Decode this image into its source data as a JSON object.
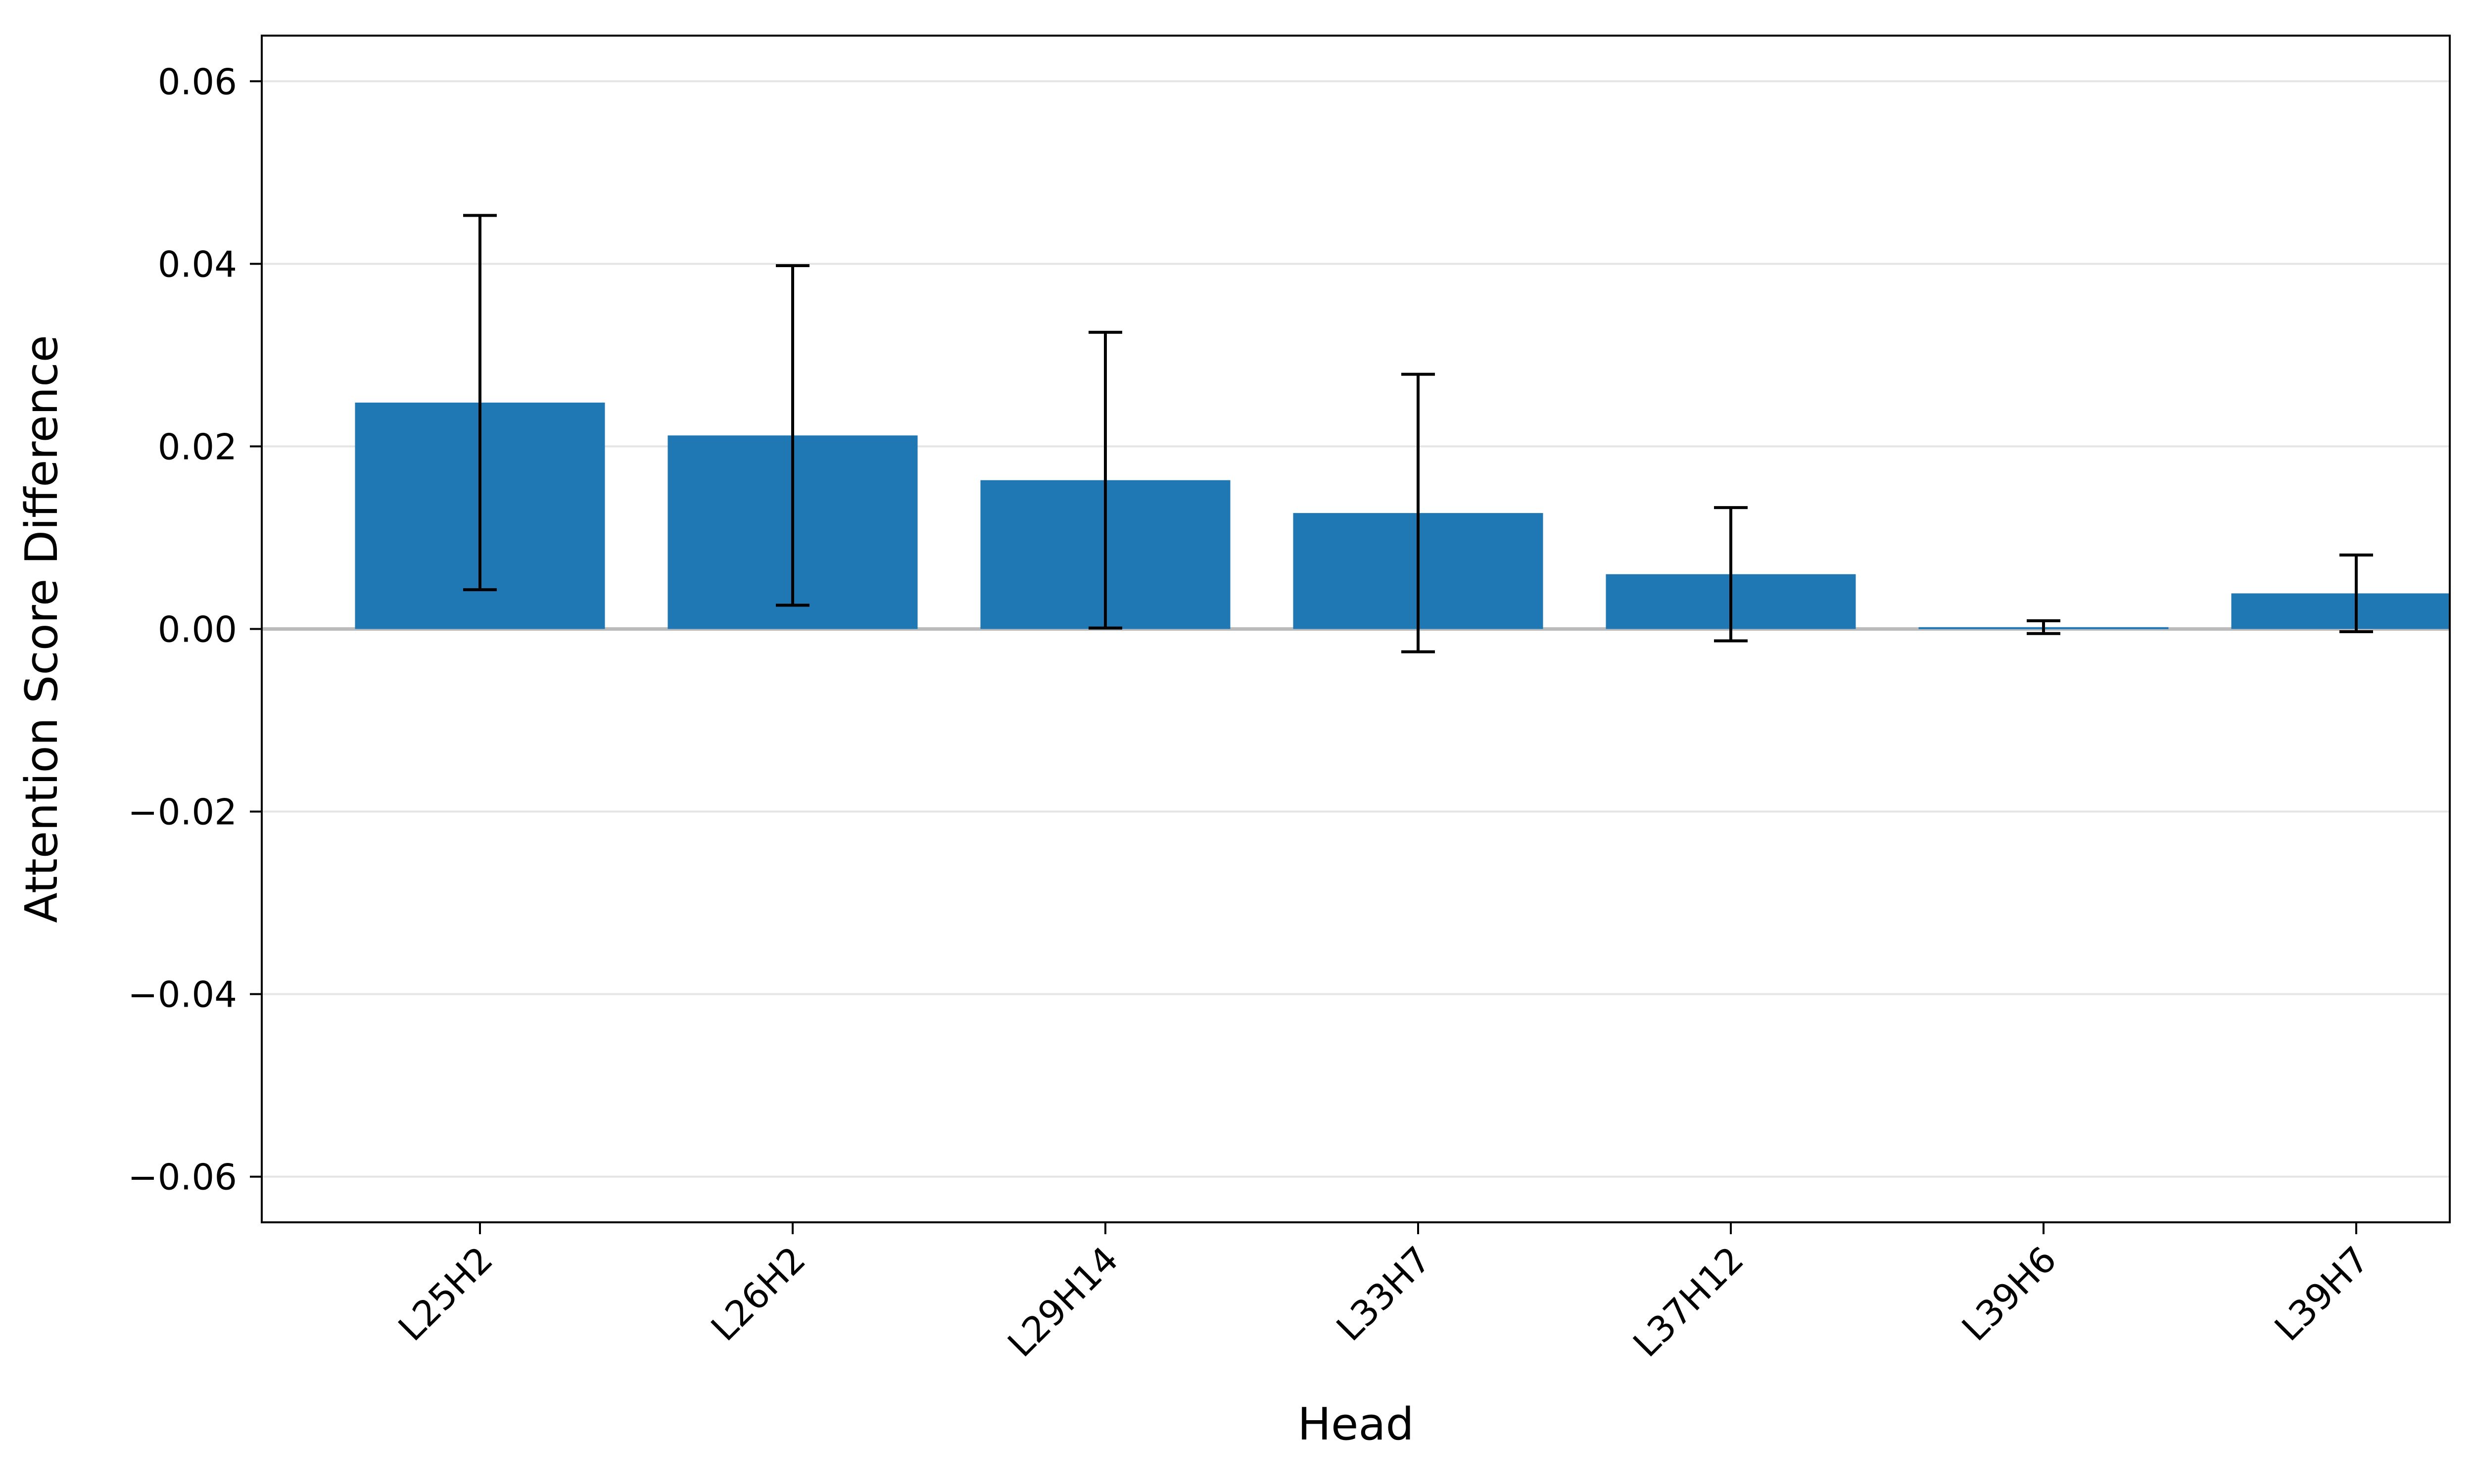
{
  "chart_data": {
    "type": "bar",
    "title": "",
    "xlabel": "Head",
    "ylabel": "Attention Score Difference",
    "categories": [
      "L25H2",
      "L26H2",
      "L29H14",
      "L33H7",
      "L37H12",
      "L39H6",
      "L39H7"
    ],
    "values": [
      0.0248,
      0.0212,
      0.0163,
      0.0127,
      0.006,
      0.0002,
      0.0039
    ],
    "errors": [
      0.0205,
      0.0186,
      0.0162,
      0.0152,
      0.0073,
      0.0007,
      0.0042
    ],
    "ylim": [
      -0.065,
      0.065
    ],
    "yticks": [
      -0.06,
      -0.04,
      -0.02,
      0.0,
      0.02,
      0.04,
      0.06
    ],
    "ytick_labels": [
      "−0.06",
      "−0.04",
      "−0.02",
      "0.00",
      "0.02",
      "0.04",
      "0.06"
    ],
    "grid": "horizontal",
    "zero_line": true,
    "bar_color": "#1f77b4",
    "error_color": "#000000",
    "grid_color": "#e5e5e5",
    "zero_line_color": "#bbbbbb"
  }
}
